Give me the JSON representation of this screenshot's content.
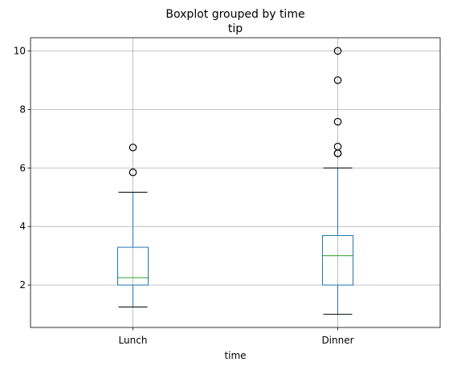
{
  "chart_data": {
    "type": "boxplot",
    "title": "Boxplot grouped by time",
    "subtitle": "tip",
    "xlabel": "time",
    "ylabel": "",
    "ylim": [
      0.55,
      10.45
    ],
    "yticks": [
      2,
      4,
      6,
      8,
      10
    ],
    "grid": true,
    "categories": [
      "Lunch",
      "Dinner"
    ],
    "boxes": [
      {
        "category": "Lunch",
        "whisker_low": 1.25,
        "q1": 2.0,
        "median": 2.25,
        "q3": 3.29,
        "whisker_high": 5.17,
        "outliers": [
          5.85,
          6.7
        ]
      },
      {
        "category": "Dinner",
        "whisker_low": 1.0,
        "q1": 2.0,
        "median": 3.0,
        "q3": 3.69,
        "whisker_high": 6.0,
        "outliers": [
          6.5,
          6.5,
          6.73,
          7.58,
          9.0,
          10.0
        ]
      }
    ],
    "colors": {
      "box": "#1f77b4",
      "median": "#2ca02c",
      "whisker_cap": "#000000",
      "grid": "#b0b0b0",
      "axes": "#000000",
      "outlier_edge": "#000000"
    }
  }
}
